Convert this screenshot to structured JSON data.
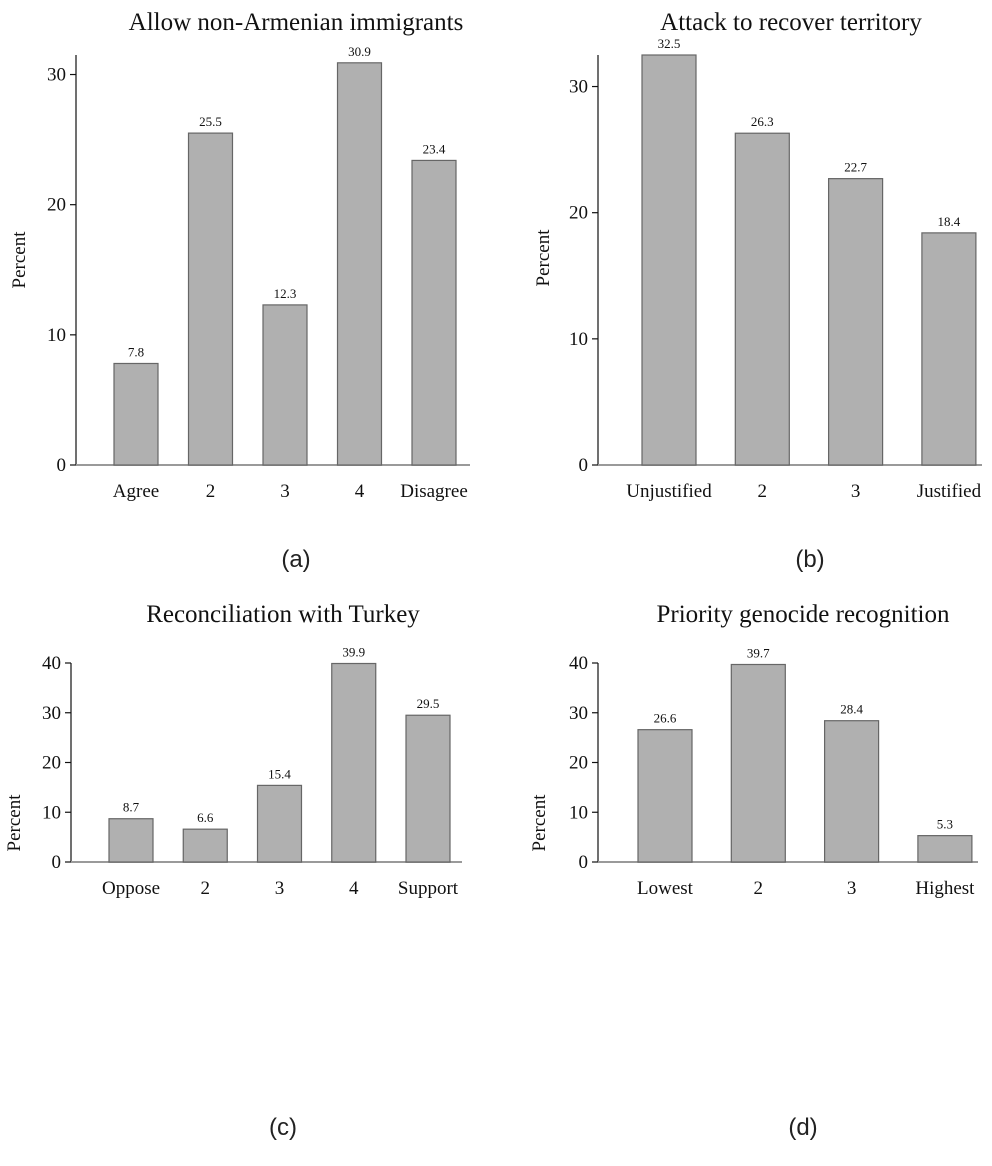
{
  "chart_data": [
    {
      "type": "bar",
      "title": "Allow non-Armenian immigrants",
      "ylabel": "Percent",
      "panel_label": "(a)",
      "categories": [
        "Agree",
        "2",
        "3",
        "4",
        "Disagree"
      ],
      "values": [
        7.8,
        25.5,
        12.3,
        30.9,
        23.4
      ],
      "value_labels": [
        "7.8",
        "25.5",
        "12.3",
        "30.9",
        "23.4"
      ],
      "yticks": [
        0,
        10,
        20,
        30
      ],
      "ylim": [
        0,
        31.5
      ]
    },
    {
      "type": "bar",
      "title": "Attack to recover territory",
      "ylabel": "Percent",
      "panel_label": "(b)",
      "categories": [
        "Unjustified",
        "2",
        "3",
        "Justified"
      ],
      "values": [
        32.5,
        26.3,
        22.7,
        18.4
      ],
      "value_labels": [
        "32.5",
        "26.3",
        "22.7",
        "18.4"
      ],
      "yticks": [
        0,
        10,
        20,
        30
      ],
      "ylim": [
        0,
        32.5
      ]
    },
    {
      "type": "bar",
      "title": "Reconciliation with Turkey",
      "ylabel": "Percent",
      "panel_label": "(c)",
      "categories": [
        "Oppose",
        "2",
        "3",
        "4",
        "Support"
      ],
      "values": [
        8.7,
        6.6,
        15.4,
        39.9,
        29.5
      ],
      "value_labels": [
        "8.7",
        "6.6",
        "15.4",
        "39.9",
        "29.5"
      ],
      "yticks": [
        0,
        10,
        20,
        30,
        40
      ],
      "ylim": [
        0,
        40
      ]
    },
    {
      "type": "bar",
      "title": "Priority genocide recognition",
      "ylabel": "Percent",
      "panel_label": "(d)",
      "categories": [
        "Lowest",
        "2",
        "3",
        "Highest"
      ],
      "values": [
        26.6,
        39.7,
        28.4,
        5.3
      ],
      "value_labels": [
        "26.6",
        "39.7",
        "28.4",
        "5.3"
      ],
      "yticks": [
        0,
        10,
        20,
        30,
        40
      ],
      "ylim": [
        0,
        40
      ]
    }
  ]
}
